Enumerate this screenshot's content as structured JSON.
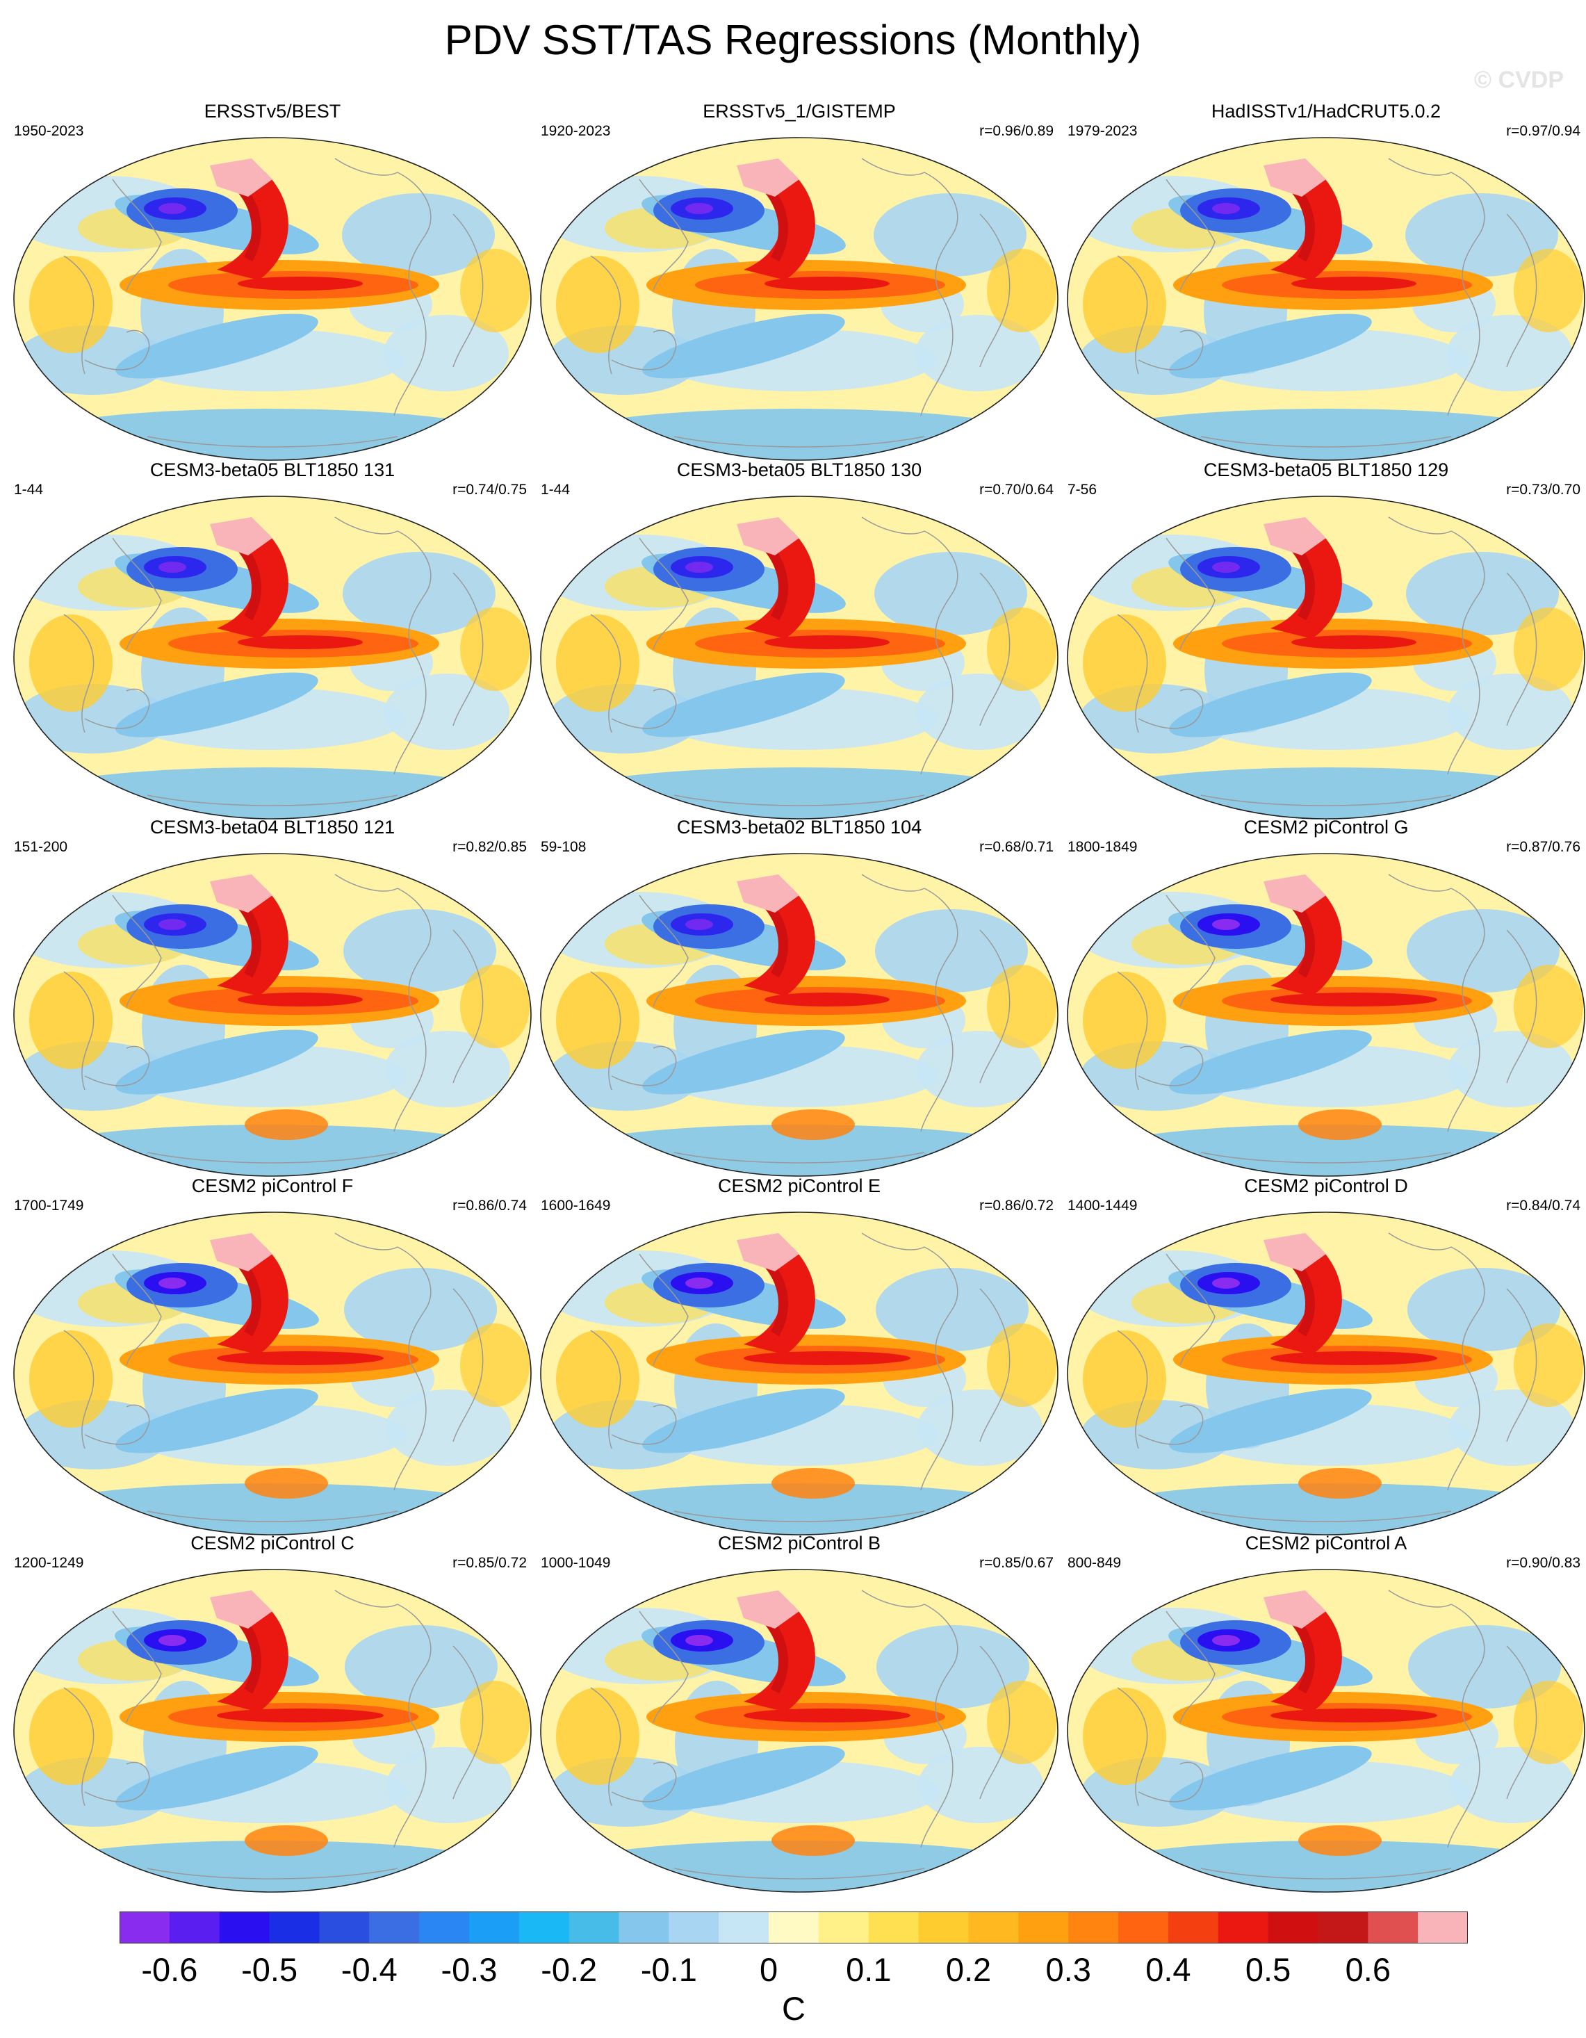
{
  "title": "PDV SST/TAS Regressions (Monthly)",
  "watermark": "© CVDP",
  "panels": [
    {
      "title": "ERSSTv5/BEST",
      "years": "1950-2023",
      "r": ""
    },
    {
      "title": "ERSSTv5_1/GISTEMP",
      "years": "1920-2023",
      "r": "r=0.96/0.89"
    },
    {
      "title": "HadISSTv1/HadCRUT5.0.2",
      "years": "1979-2023",
      "r": "r=0.97/0.94"
    },
    {
      "title": "CESM3-beta05 BLT1850 131",
      "years": "1-44",
      "r": "r=0.74/0.75"
    },
    {
      "title": "CESM3-beta05 BLT1850 130",
      "years": "1-44",
      "r": "r=0.70/0.64"
    },
    {
      "title": "CESM3-beta05 BLT1850 129",
      "years": "7-56",
      "r": "r=0.73/0.70"
    },
    {
      "title": "CESM3-beta04 BLT1850 121",
      "years": "151-200",
      "r": "r=0.82/0.85"
    },
    {
      "title": "CESM3-beta02 BLT1850 104",
      "years": "59-108",
      "r": "r=0.68/0.71"
    },
    {
      "title": "CESM2 piControl G",
      "years": "1800-1849",
      "r": "r=0.87/0.76"
    },
    {
      "title": "CESM2 piControl F",
      "years": "1700-1749",
      "r": "r=0.86/0.74"
    },
    {
      "title": "CESM2 piControl E",
      "years": "1600-1649",
      "r": "r=0.86/0.72"
    },
    {
      "title": "CESM2 piControl D",
      "years": "1400-1449",
      "r": "r=0.84/0.74"
    },
    {
      "title": "CESM2 piControl C",
      "years": "1200-1249",
      "r": "r=0.85/0.72"
    },
    {
      "title": "CESM2 piControl B",
      "years": "1000-1049",
      "r": "r=0.85/0.67"
    },
    {
      "title": "CESM2 piControl A",
      "years": "800-849",
      "r": "r=0.90/0.83"
    }
  ],
  "colorbar": {
    "colors": [
      "#8a2bf0",
      "#5a1ff0",
      "#2a10f0",
      "#1a2ee6",
      "#2a4ee0",
      "#3a6ee2",
      "#2a86f2",
      "#1a9ef6",
      "#1ab8f4",
      "#48bce8",
      "#84c6ec",
      "#a8d6f2",
      "#c6e6f6",
      "#fffac4",
      "#fff088",
      "#ffe050",
      "#ffcc30",
      "#ffb820",
      "#ffa010",
      "#ff8410",
      "#ff6410",
      "#f44010",
      "#ea1810",
      "#d01010",
      "#c41818",
      "#e05050",
      "#f8b4b8"
    ],
    "ticks": [
      "-0.6",
      "-0.5",
      "-0.4",
      "-0.3",
      "-0.2",
      "-0.1",
      "0",
      "0.1",
      "0.2",
      "0.3",
      "0.4",
      "0.5",
      "0.6"
    ],
    "units": "C"
  }
}
